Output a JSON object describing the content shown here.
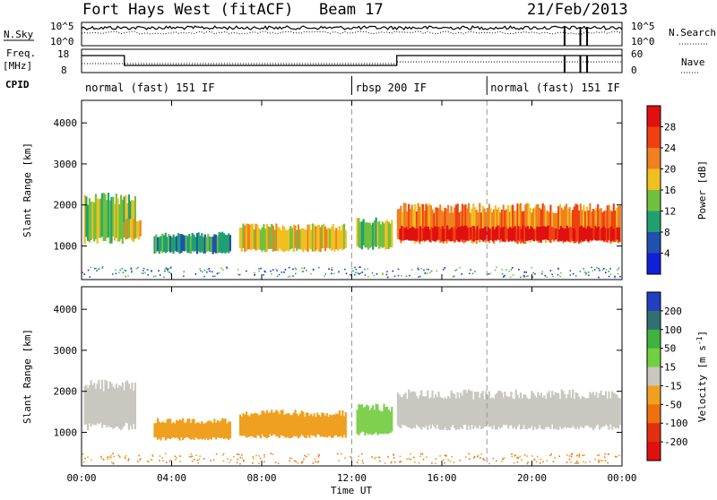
{
  "header": {
    "station": "Fort Hays West (fitACF)",
    "beam": "Beam 17",
    "date": "21/Feb/2013"
  },
  "strip_labels": {
    "nsky": "N.Sky",
    "nsky_hi": "10^5",
    "nsky_lo": "10^0",
    "nsearch": "N.Search",
    "nsearch_hi": "10^5",
    "nsearch_lo": "10^0",
    "freq_top": "Freq.",
    "freq_unit": "[MHz]",
    "freq_hi": "18",
    "freq_lo": "8",
    "nave_hi": "60",
    "nave_lo": "0",
    "nave": "Nave",
    "cpid": "CPID"
  },
  "cpid_segments": [
    {
      "label": "normal (fast) 151 IF",
      "start_h": 0
    },
    {
      "label": "rbsp 200 IF",
      "start_h": 12
    },
    {
      "label": "normal (fast) 151 IF",
      "start_h": 18
    }
  ],
  "chart_data": [
    {
      "type": "heatmap",
      "name": "power",
      "ylabel": "Slant Range [km]",
      "xlim": [
        0,
        24
      ],
      "ylim": [
        180,
        4550
      ],
      "yticks": [
        "1000",
        "2000",
        "3000",
        "4000"
      ],
      "ytick_values": [
        1000,
        2000,
        3000,
        4000
      ],
      "colorbar": {
        "label": "Power [dB]",
        "ticks": [
          "4",
          "8",
          "12",
          "16",
          "20",
          "24",
          "28"
        ],
        "colors": [
          "#1020d8",
          "#2050b0",
          "#20a070",
          "#70c040",
          "#f0c020",
          "#f08020",
          "#f04010",
          "#e01010"
        ]
      },
      "regions": [
        {
          "x0": 0.1,
          "x1": 2.4,
          "y0": 1050,
          "y1": 2300,
          "level": 3
        },
        {
          "x0": 1.8,
          "x1": 2.6,
          "y0": 1150,
          "y1": 1700,
          "level": 4
        },
        {
          "x0": 3.2,
          "x1": 6.6,
          "y0": 800,
          "y1": 1350,
          "level": 2
        },
        {
          "x0": 7.0,
          "x1": 11.7,
          "y0": 850,
          "y1": 1550,
          "level": 4
        },
        {
          "x0": 12.2,
          "x1": 13.8,
          "y0": 900,
          "y1": 1700,
          "level": 3
        },
        {
          "x0": 14.0,
          "x1": 23.9,
          "y0": 1050,
          "y1": 2050,
          "level": 5
        },
        {
          "x0": 14.1,
          "x1": 23.9,
          "y0": 1100,
          "y1": 1500,
          "level": 7
        }
      ]
    },
    {
      "type": "heatmap",
      "name": "velocity",
      "ylabel": "Slant Range [km]",
      "xlabel": "Time UT",
      "xlim": [
        0,
        24
      ],
      "ylim": [
        180,
        4550
      ],
      "xticks": [
        "00:00",
        "04:00",
        "08:00",
        "12:00",
        "16:00",
        "20:00",
        "00:00"
      ],
      "xtick_values": [
        0,
        4,
        8,
        12,
        16,
        20,
        24
      ],
      "yticks": [
        "1000",
        "2000",
        "3000",
        "4000"
      ],
      "ytick_values": [
        1000,
        2000,
        3000,
        4000
      ],
      "colorbar": {
        "label": "Velocity [m s",
        "label_exp": "-1",
        "label_close": "]",
        "ticks": [
          "200",
          "100",
          "50",
          "15",
          "-15",
          "-50",
          "-100",
          "-200"
        ],
        "colors": [
          "#2040c0",
          "#307070",
          "#40b040",
          "#70d040",
          "#c8c8c0",
          "#f0a020",
          "#f07010",
          "#e03010",
          "#e01010"
        ]
      },
      "regions": [
        {
          "x0": 0.1,
          "x1": 2.4,
          "y0": 1050,
          "y1": 2300,
          "color": "#c8c8c0"
        },
        {
          "x0": 3.2,
          "x1": 6.6,
          "y0": 800,
          "y1": 1350,
          "color": "#f0a020"
        },
        {
          "x0": 7.0,
          "x1": 11.7,
          "y0": 850,
          "y1": 1550,
          "color": "#f0a020"
        },
        {
          "x0": 12.2,
          "x1": 13.8,
          "y0": 900,
          "y1": 1700,
          "color": "#80d050"
        },
        {
          "x0": 14.0,
          "x1": 23.9,
          "y0": 1050,
          "y1": 2050,
          "color": "#c8c8c0"
        }
      ]
    }
  ]
}
